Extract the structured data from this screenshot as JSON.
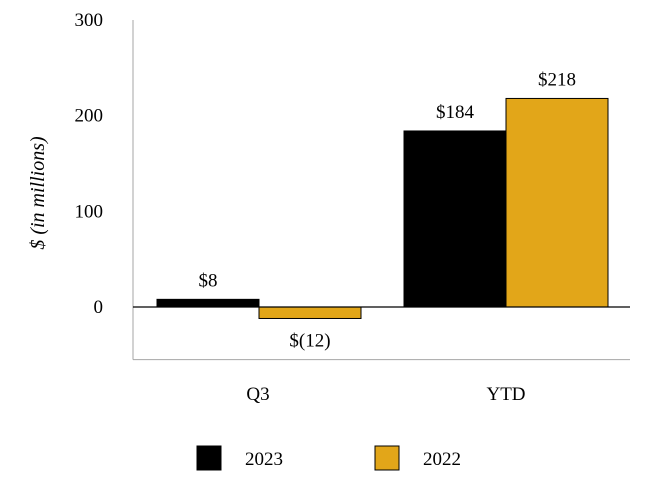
{
  "chart_data": {
    "type": "bar",
    "title": "",
    "xlabel": "",
    "ylabel": "$ (in millions)",
    "ylim": [
      -55,
      300
    ],
    "yticks": [
      0,
      100,
      200,
      300
    ],
    "grid": false,
    "legend_position": "bottom",
    "categories": [
      "Q3",
      "YTD"
    ],
    "series": [
      {
        "name": "2023",
        "color": "#000000",
        "values": [
          8,
          184
        ],
        "labels": [
          "$8",
          "$184"
        ]
      },
      {
        "name": "2022",
        "color": "#E2A619",
        "values": [
          -12,
          218
        ],
        "labels": [
          "$(12)",
          "$218"
        ]
      }
    ]
  }
}
